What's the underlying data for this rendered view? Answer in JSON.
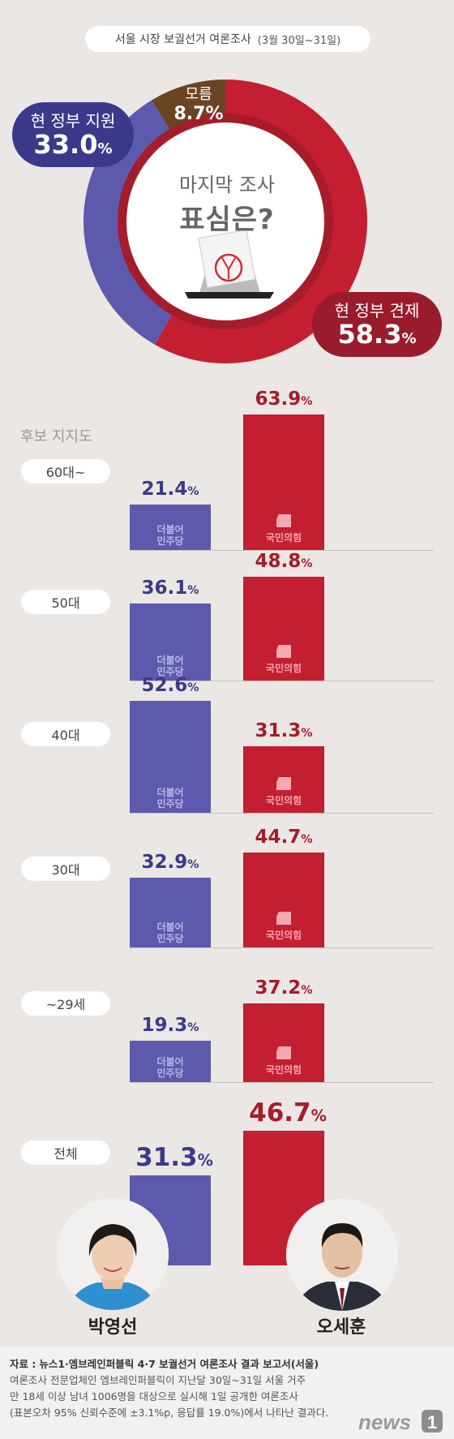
{
  "header": {
    "title": "서울 시장 보궐선거 여론조사",
    "dates": "(3월 30일~31일)"
  },
  "donut": {
    "center_line1": "마지막 조사",
    "center_line2": "표심은?",
    "oppose_label": "현 정부 견제",
    "oppose_value": "58.3",
    "support_label": "현 정부 지원",
    "support_value": "33.0",
    "unknown_label": "모름",
    "unknown_value": "8.7",
    "pct": "%"
  },
  "section_title": "후보 지지도",
  "party_labels": {
    "dem_l1": "더불어",
    "dem_l2": "민주당",
    "ppp": "국민의힘"
  },
  "groups": [
    {
      "label": "60대~",
      "dem": "21.4",
      "ppp": "63.9"
    },
    {
      "label": "50대",
      "dem": "36.1",
      "ppp": "48.8"
    },
    {
      "label": "40대",
      "dem": "52.6",
      "ppp": "31.3"
    },
    {
      "label": "30대",
      "dem": "32.9",
      "ppp": "44.7"
    },
    {
      "label": "~29세",
      "dem": "19.3",
      "ppp": "37.2"
    }
  ],
  "total": {
    "label": "전체",
    "dem": "31.3",
    "ppp": "46.7",
    "dem_name": "박영선",
    "ppp_name": "오세훈"
  },
  "source": {
    "label": "자료 :",
    "title": "뉴스1·엠브레인퍼블릭 4·7 보궐선거 여론조사 결과 보고서(서울)",
    "line2": "여론조사 전문업체인 엠브레인퍼블릭이 지난달 30일~31일 서울 거주",
    "line3": "만 18세 이상 남녀 1006명을 대상으로 실시해 1일 공개한 여론조사",
    "line4": "(표본오차 95% 신뢰수준에 ±3.1%p, 응답률 19.0%)에서 나타난 결과다."
  },
  "logo": {
    "text": "news",
    "num": "1"
  },
  "colors": {
    "dem": "#5d5aad",
    "ppp": "#c41e31",
    "support": "#3b3a8a",
    "oppose": "#9a1b2b",
    "unknown": "#6b4423"
  },
  "chart_data": [
    {
      "type": "pie",
      "title": "서울 시장 보궐선거 여론조사",
      "categories": [
        "현 정부 견제",
        "현 정부 지원",
        "모름"
      ],
      "values": [
        58.3,
        33.0,
        8.7
      ]
    },
    {
      "type": "bar",
      "title": "후보 지지도",
      "categories": [
        "60대~",
        "50대",
        "40대",
        "30대",
        "~29세",
        "전체"
      ],
      "series": [
        {
          "name": "더불어민주당",
          "values": [
            21.4,
            36.1,
            52.6,
            32.9,
            19.3,
            31.3
          ]
        },
        {
          "name": "국민의힘",
          "values": [
            63.9,
            48.8,
            31.3,
            44.7,
            37.2,
            46.7
          ]
        }
      ],
      "ylim": [
        0,
        70
      ]
    }
  ]
}
